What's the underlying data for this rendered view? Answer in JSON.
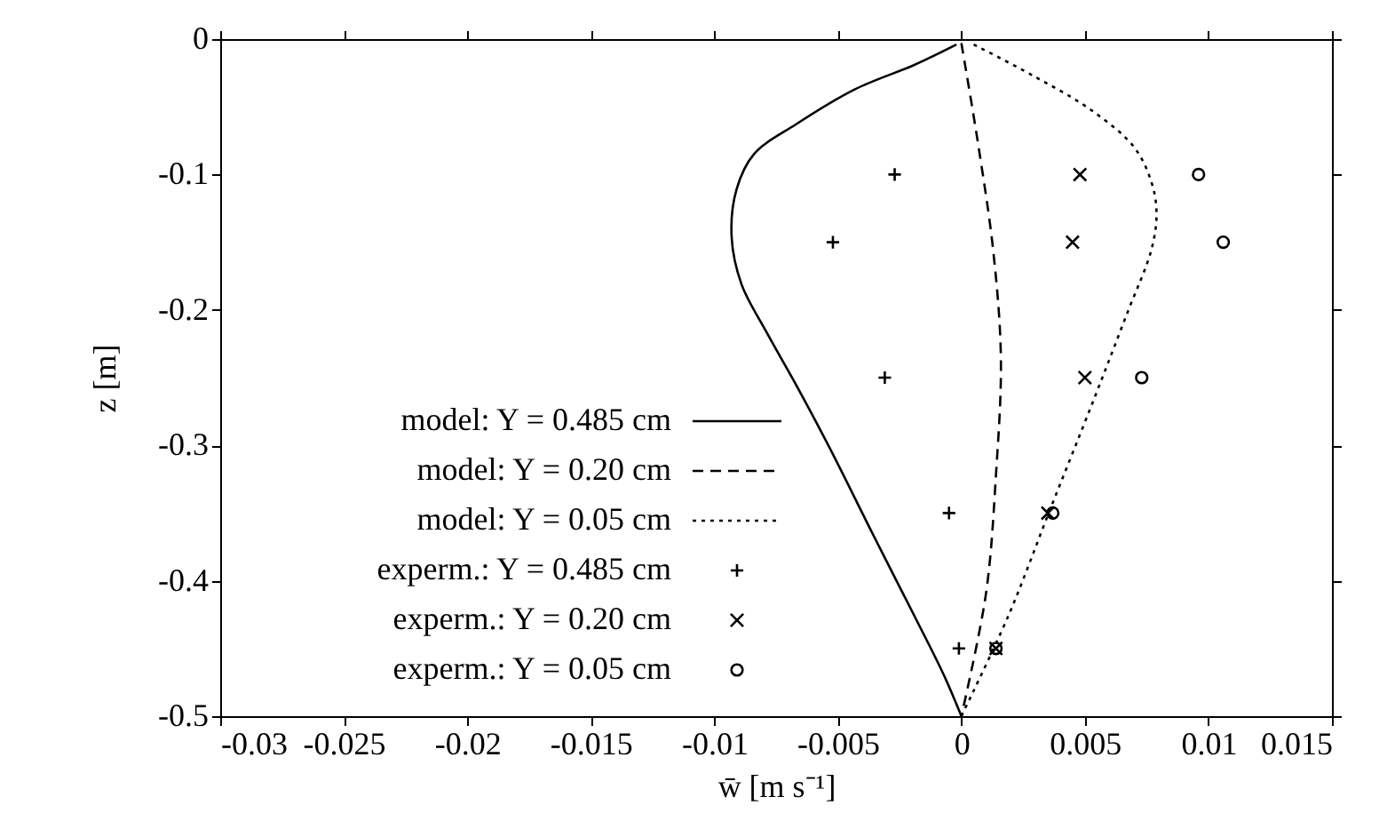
{
  "chart_data": {
    "type": "line",
    "xlabel": "w̄  [m s⁻¹]",
    "ylabel": "z  [m]",
    "xlim": [
      -0.03,
      0.015
    ],
    "ylim": [
      -0.5,
      0
    ],
    "xticks": [
      -0.03,
      -0.025,
      -0.02,
      -0.015,
      -0.01,
      -0.005,
      0,
      0.005,
      0.01,
      0.015
    ],
    "yticks": [
      -0.5,
      -0.4,
      -0.3,
      -0.2,
      -0.1,
      0
    ],
    "grid": false,
    "legend": "bottom left",
    "series": [
      {
        "name": "model: Y = 0.485 cm",
        "line_style": "solid",
        "color": "#000000",
        "x": [
          -0.0002,
          -0.0019,
          -0.0043,
          -0.0067,
          -0.0084,
          -0.0091,
          -0.0093,
          -0.0089,
          -0.0079,
          -0.0067,
          -0.0053,
          -0.0036,
          -0.0019,
          -0.0007,
          0
        ],
        "values": [
          -0.004,
          -0.019,
          -0.037,
          -0.063,
          -0.085,
          -0.111,
          -0.146,
          -0.181,
          -0.216,
          -0.255,
          -0.303,
          -0.365,
          -0.426,
          -0.47,
          -0.5
        ]
      },
      {
        "name": "model: Y = 0.20 cm",
        "line_style": "dashed",
        "color": "#000000",
        "x": [
          0,
          0.0007,
          0.0013,
          0.0016,
          0.0014,
          0.001,
          0
        ],
        "values": [
          -0.003,
          -0.08,
          -0.158,
          -0.236,
          -0.322,
          -0.409,
          -0.5
        ]
      },
      {
        "name": "model: Y = 0.05 cm",
        "line_style": "dotted",
        "color": "#000000",
        "x": [
          0.0005,
          0.0029,
          0.0053,
          0.007,
          0.0077,
          0.0079,
          0.0077,
          0.0067,
          0.0053,
          0.0036,
          0.0019,
          0
        ],
        "values": [
          -0.004,
          -0.027,
          -0.053,
          -0.08,
          -0.106,
          -0.128,
          -0.155,
          -0.203,
          -0.269,
          -0.347,
          -0.426,
          -0.5
        ]
      },
      {
        "name": "experm.: Y = 0.485 cm",
        "type": "scatter",
        "marker": "plus",
        "color": "#000000",
        "x": [
          -0.0027,
          -0.0052,
          -0.0031,
          -0.0005,
          -0.0001
        ],
        "values": [
          -0.1,
          -0.15,
          -0.25,
          -0.35,
          -0.45
        ]
      },
      {
        "name": "experm.: Y = 0.20 cm",
        "type": "scatter",
        "marker": "cross",
        "color": "#000000",
        "x": [
          0.0048,
          0.0045,
          0.005,
          0.0035,
          0.0014
        ],
        "values": [
          -0.1,
          -0.15,
          -0.25,
          -0.35,
          -0.45
        ]
      },
      {
        "name": "experm.: Y = 0.05 cm",
        "type": "scatter",
        "marker": "circle",
        "color": "#000000",
        "x": [
          0.0096,
          0.0106,
          0.0073,
          0.0037,
          0.0014
        ],
        "values": [
          -0.1,
          -0.15,
          -0.25,
          -0.35,
          -0.45
        ]
      }
    ]
  }
}
